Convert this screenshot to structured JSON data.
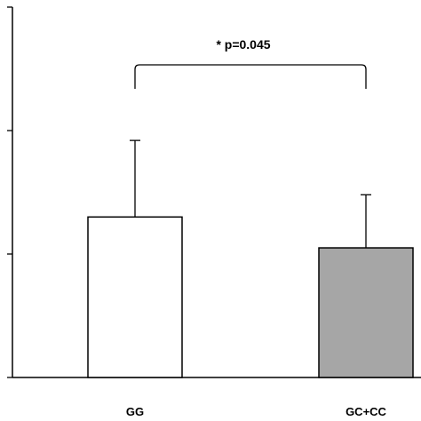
{
  "chart_data": {
    "type": "bar",
    "title": "",
    "xlabel": "",
    "ylabel": "",
    "categories": [
      "GG",
      "GC+CC"
    ],
    "series": [
      {
        "values": [
          1.3,
          1.05
        ],
        "error": [
          0.62,
          0.43
        ],
        "colors": [
          "#ffffff",
          "#a6a6a6"
        ]
      }
    ],
    "ylim": [
      0,
      3
    ],
    "yticks": [
      0,
      1,
      2,
      3
    ],
    "ytick_labels_visible": false,
    "grid": false,
    "legend": "none",
    "annotation": {
      "text": "* p=0.045",
      "from_category": "GG",
      "to_category": "GC+CC"
    }
  }
}
